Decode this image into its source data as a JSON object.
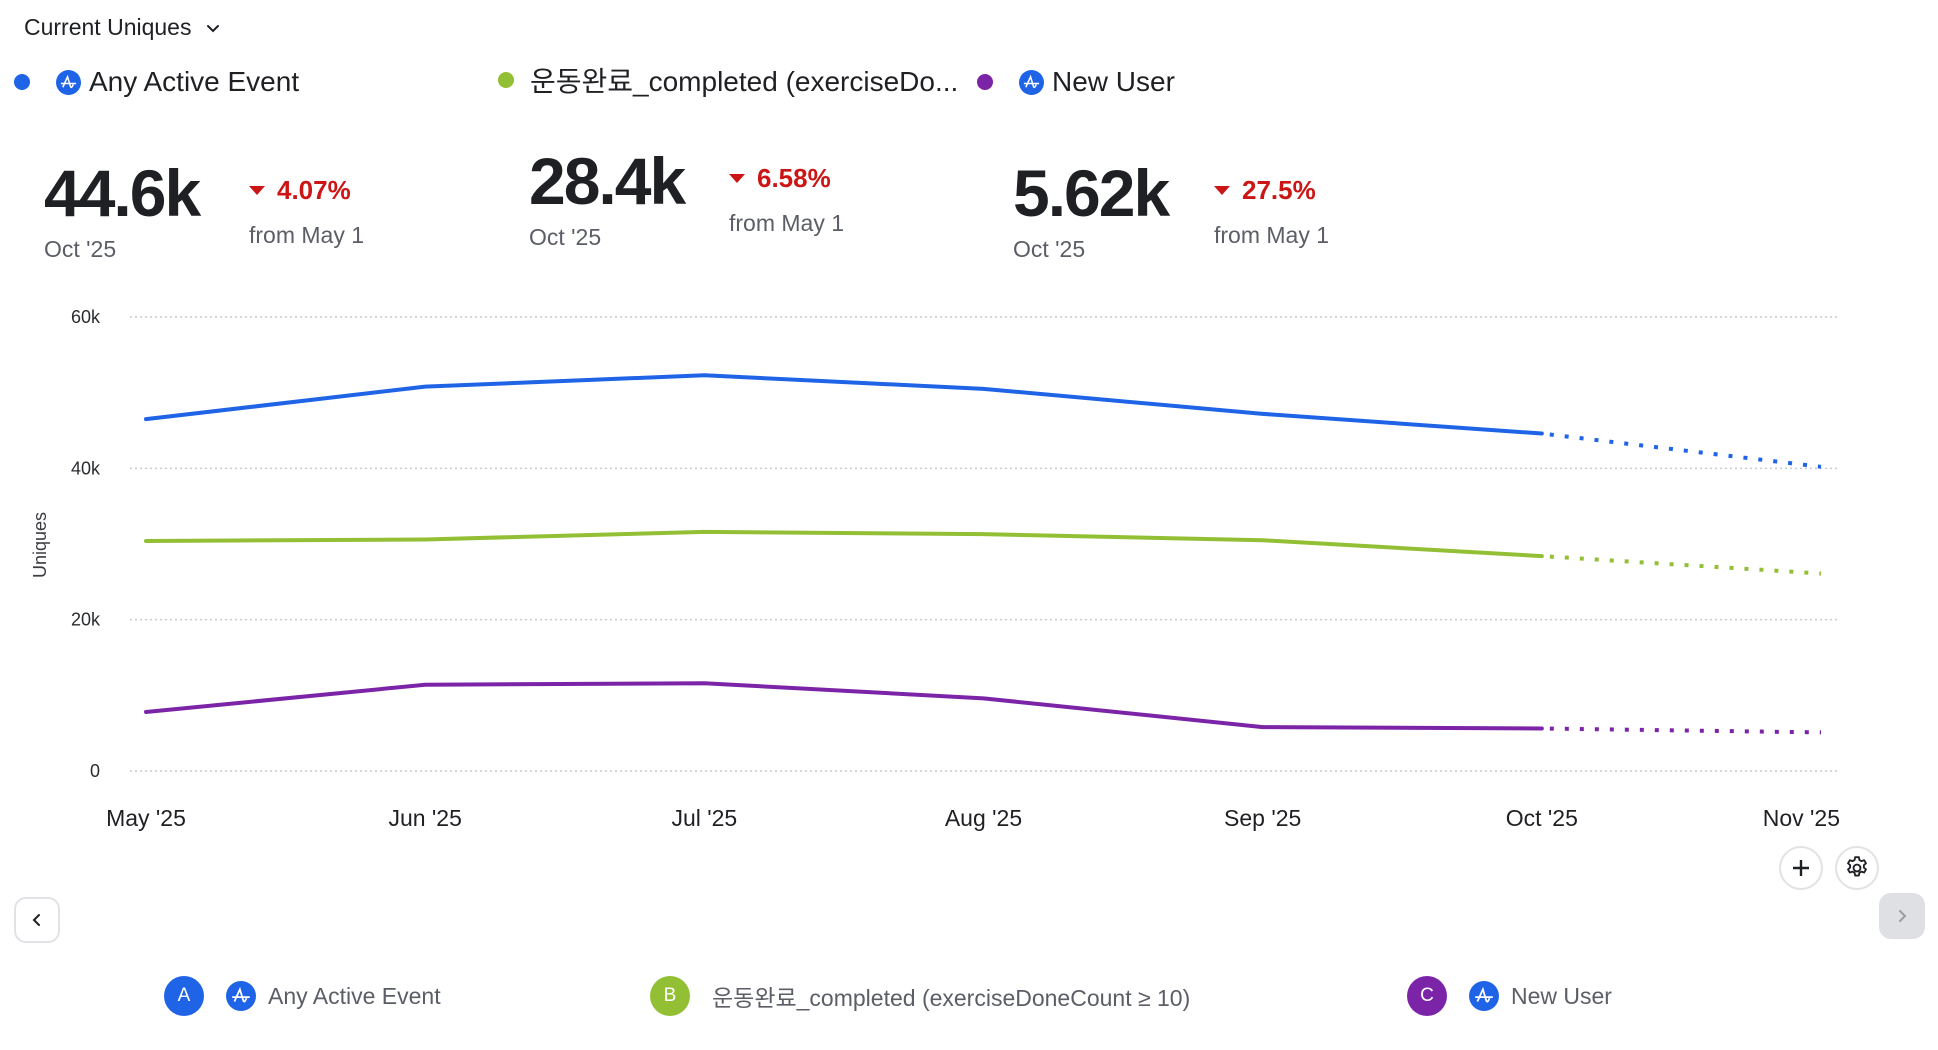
{
  "header": {
    "metric_selector": "Current Uniques",
    "chevron_icon": "chevron-down-icon"
  },
  "series_legend": [
    {
      "label": "Any Active Event",
      "color": "#1f64e6",
      "icon": "amplitude-icon"
    },
    {
      "label": "운동완료_completed (exerciseDo...",
      "color": "#93bf35",
      "icon": null
    },
    {
      "label": "New User",
      "color": "#7c24a8",
      "icon": "amplitude-icon"
    }
  ],
  "kpis": [
    {
      "value": "44.6k",
      "period": "Oct '25",
      "change": "4.07%",
      "direction": "down",
      "change_ref": "from May 1"
    },
    {
      "value": "28.4k",
      "period": "Oct '25",
      "change": "6.58%",
      "direction": "down",
      "change_ref": "from May 1"
    },
    {
      "value": "5.62k",
      "period": "Oct '25",
      "change": "27.5%",
      "direction": "down",
      "change_ref": "from May 1"
    }
  ],
  "chart_data": {
    "type": "line",
    "title": "",
    "xlabel": "",
    "ylabel": "Uniques",
    "categories": [
      "May '25",
      "Jun '25",
      "Jul '25",
      "Aug '25",
      "Sep '25",
      "Oct '25",
      "Nov '25"
    ],
    "ylim": [
      0,
      60000
    ],
    "yticks": [
      0,
      20000,
      40000,
      60000
    ],
    "ytick_labels": [
      "0",
      "20k",
      "40k",
      "60k"
    ],
    "grid": true,
    "projected_from_index": 5,
    "series": [
      {
        "name": "Any Active Event",
        "color": "#1f64e6",
        "values": [
          46500,
          50800,
          52300,
          50500,
          47200,
          44600,
          40200
        ]
      },
      {
        "name": "운동완료_completed (exerciseDoneCount ≥ 10)",
        "color": "#93bf35",
        "values": [
          30400,
          30600,
          31600,
          31300,
          30500,
          28400,
          26100
        ]
      },
      {
        "name": "New User",
        "color": "#7c24a8",
        "values": [
          7800,
          11400,
          11600,
          9600,
          5800,
          5620,
          5100
        ]
      }
    ]
  },
  "controls": {
    "add_icon": "plus-icon",
    "settings_icon": "gear-icon",
    "prev_icon": "chevron-left-icon",
    "next_icon": "chevron-right-icon"
  },
  "bottom_legend": [
    {
      "badge": "A",
      "color": "#1f64e6",
      "label": "Any Active Event",
      "icon": "amplitude-icon"
    },
    {
      "badge": "B",
      "color": "#93bf35",
      "label": "운동완료_completed (exerciseDoneCount ≥ 10)",
      "icon": null
    },
    {
      "badge": "C",
      "color": "#7c24a8",
      "label": "New User",
      "icon": "amplitude-icon"
    }
  ]
}
